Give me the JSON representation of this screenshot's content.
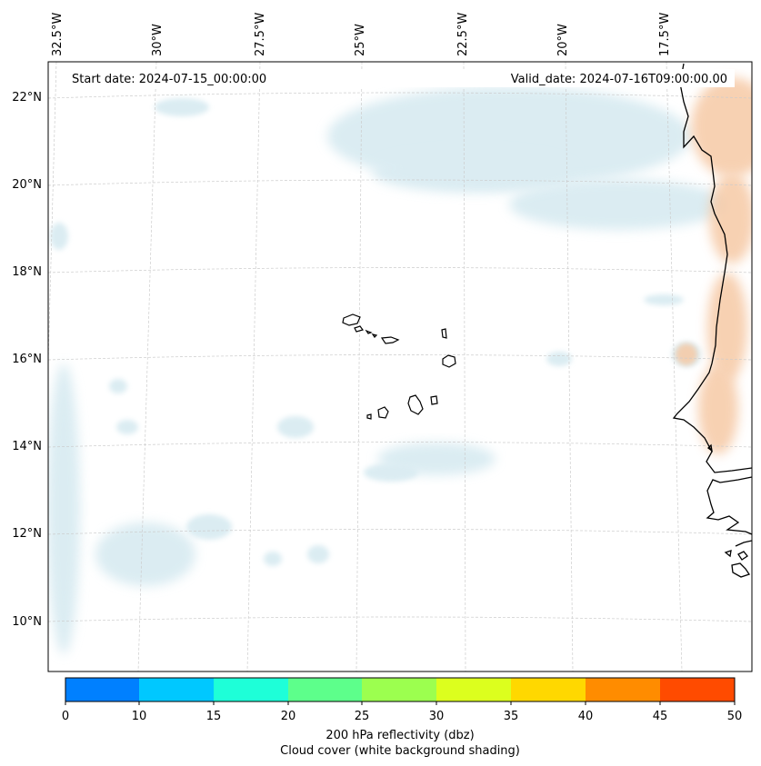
{
  "map": {
    "start_date": "Start date: 2024-07-15_00:00:00",
    "valid_date": "Valid_date: 2024-07-16T09:00:00.00",
    "lon_labels": [
      "32.5°W",
      "30°W",
      "27.5°W",
      "25°W",
      "22.5°W",
      "20°W",
      "17.5°W"
    ],
    "lat_labels": [
      "22°N",
      "20°N",
      "18°N",
      "16°N",
      "14°N",
      "12°N",
      "10°N"
    ],
    "cloud_color": "#cfe6ee",
    "reflectivity_color": "#f6c9a5"
  },
  "colorbar": {
    "ticks": [
      "0",
      "10",
      "15",
      "20",
      "25",
      "30",
      "35",
      "40",
      "45",
      "50"
    ],
    "colors": [
      "#0080ff",
      "#00c8ff",
      "#1effd8",
      "#5dff8b",
      "#9cff4f",
      "#dcff1e",
      "#ffd800",
      "#ff8c00",
      "#ff4b00"
    ],
    "label_line1": "200 hPa reflectivity (dbz)",
    "label_line2": "Cloud cover (white background shading)"
  }
}
